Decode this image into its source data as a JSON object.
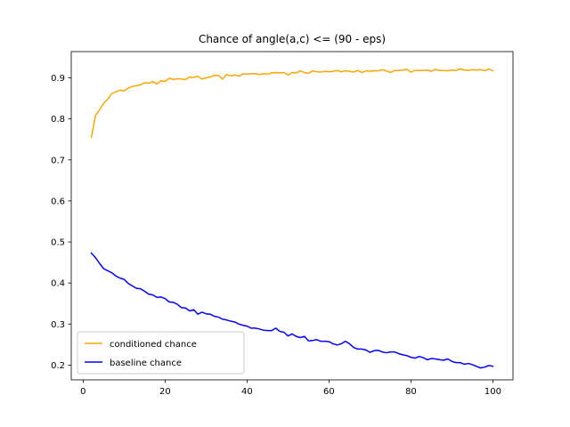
{
  "chart_data": {
    "type": "line",
    "title": "Chance of angle(a,c) <= (90 - eps)",
    "xlabel": "",
    "ylabel": "",
    "xlim": [
      -2.9,
      104.9
    ],
    "ylim": [
      0.164,
      0.964
    ],
    "x_ticks": [
      0,
      20,
      40,
      60,
      80,
      100
    ],
    "y_ticks": [
      0.2,
      0.3,
      0.4,
      0.5,
      0.6,
      0.7,
      0.8,
      0.9
    ],
    "grid": false,
    "legend_position": "lower-left",
    "x": [
      2,
      3,
      4,
      5,
      6,
      7,
      8,
      9,
      10,
      11,
      12,
      13,
      14,
      15,
      16,
      17,
      18,
      19,
      20,
      21,
      22,
      23,
      24,
      25,
      26,
      27,
      28,
      29,
      30,
      31,
      32,
      33,
      34,
      35,
      36,
      37,
      38,
      39,
      40,
      41,
      42,
      43,
      44,
      45,
      46,
      47,
      48,
      49,
      50,
      51,
      52,
      53,
      54,
      55,
      56,
      57,
      58,
      59,
      60,
      61,
      62,
      63,
      64,
      65,
      66,
      67,
      68,
      69,
      70,
      71,
      72,
      73,
      74,
      75,
      76,
      77,
      78,
      79,
      80,
      81,
      82,
      83,
      84,
      85,
      86,
      87,
      88,
      89,
      90,
      91,
      92,
      93,
      94,
      95,
      96,
      97,
      98,
      99,
      100
    ],
    "series": [
      {
        "name": "conditioned chance",
        "color": "#ffa500",
        "values": [
          0.755,
          0.808,
          0.822,
          0.838,
          0.848,
          0.862,
          0.866,
          0.87,
          0.868,
          0.875,
          0.879,
          0.881,
          0.883,
          0.888,
          0.887,
          0.891,
          0.885,
          0.893,
          0.891,
          0.899,
          0.896,
          0.898,
          0.897,
          0.896,
          0.902,
          0.901,
          0.904,
          0.897,
          0.9,
          0.902,
          0.906,
          0.906,
          0.897,
          0.908,
          0.905,
          0.907,
          0.904,
          0.91,
          0.909,
          0.91,
          0.91,
          0.908,
          0.91,
          0.909,
          0.912,
          0.913,
          0.912,
          0.913,
          0.907,
          0.913,
          0.912,
          0.917,
          0.913,
          0.911,
          0.917,
          0.915,
          0.914,
          0.916,
          0.915,
          0.916,
          0.918,
          0.915,
          0.917,
          0.916,
          0.914,
          0.918,
          0.913,
          0.917,
          0.916,
          0.917,
          0.917,
          0.92,
          0.917,
          0.913,
          0.918,
          0.918,
          0.919,
          0.921,
          0.914,
          0.918,
          0.918,
          0.918,
          0.919,
          0.916,
          0.921,
          0.918,
          0.918,
          0.917,
          0.919,
          0.918,
          0.922,
          0.919,
          0.918,
          0.92,
          0.919,
          0.92,
          0.917,
          0.922,
          0.917
        ]
      },
      {
        "name": "baseline chance",
        "color": "#0000ff",
        "values": [
          0.473,
          0.462,
          0.448,
          0.435,
          0.43,
          0.425,
          0.417,
          0.412,
          0.409,
          0.399,
          0.393,
          0.387,
          0.386,
          0.38,
          0.373,
          0.371,
          0.365,
          0.366,
          0.362,
          0.354,
          0.353,
          0.348,
          0.34,
          0.339,
          0.332,
          0.335,
          0.324,
          0.329,
          0.325,
          0.324,
          0.319,
          0.317,
          0.312,
          0.31,
          0.307,
          0.305,
          0.3,
          0.297,
          0.295,
          0.29,
          0.29,
          0.288,
          0.285,
          0.284,
          0.284,
          0.29,
          0.282,
          0.28,
          0.271,
          0.276,
          0.27,
          0.267,
          0.27,
          0.259,
          0.26,
          0.262,
          0.258,
          0.258,
          0.257,
          0.252,
          0.249,
          0.252,
          0.258,
          0.252,
          0.243,
          0.239,
          0.239,
          0.237,
          0.231,
          0.235,
          0.236,
          0.232,
          0.23,
          0.232,
          0.232,
          0.228,
          0.225,
          0.223,
          0.219,
          0.217,
          0.221,
          0.218,
          0.213,
          0.216,
          0.215,
          0.213,
          0.212,
          0.215,
          0.209,
          0.206,
          0.206,
          0.202,
          0.204,
          0.201,
          0.197,
          0.193,
          0.195,
          0.199,
          0.197
        ]
      }
    ]
  }
}
